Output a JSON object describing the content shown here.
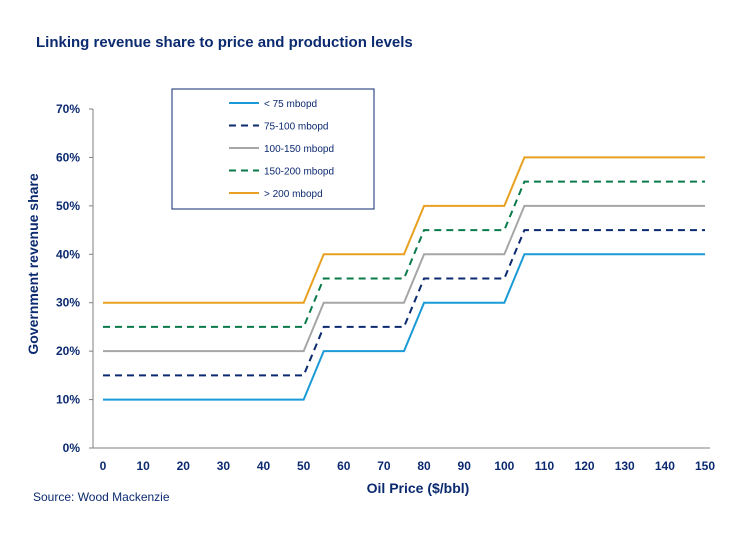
{
  "header": {
    "title": "Linking revenue share to price and production levels"
  },
  "footer": {
    "source": "Source: Wood Mackenzie"
  },
  "chart_data": {
    "type": "line",
    "title": "Linking revenue share to price and production levels",
    "xlabel": "Oil Price ($/bbl)",
    "ylabel": "Government revenue share",
    "xlim": [
      0,
      150
    ],
    "ylim": [
      0,
      70
    ],
    "x_ticks": [
      "0",
      "10",
      "20",
      "30",
      "40",
      "50",
      "60",
      "70",
      "80",
      "90",
      "100",
      "110",
      "120",
      "130",
      "140",
      "150"
    ],
    "y_ticks": [
      "0%",
      "10%",
      "20%",
      "30%",
      "40%",
      "50%",
      "60%",
      "70%"
    ],
    "grid": false,
    "legend_position": "top-left (boxed)",
    "x": [
      0,
      50,
      55,
      75,
      80,
      100,
      105,
      150
    ],
    "series": [
      {
        "name": "< 75 mbopd",
        "color": "#1a9ad6",
        "style": "solid",
        "values": [
          10,
          10,
          20,
          20,
          30,
          30,
          40,
          40
        ]
      },
      {
        "name": "75-100 mbopd",
        "color": "#0b2a6f",
        "style": "dashed",
        "values": [
          15,
          15,
          25,
          25,
          35,
          35,
          45,
          45
        ]
      },
      {
        "name": "100-150 mbopd",
        "color": "#a6a6a6",
        "style": "solid",
        "values": [
          20,
          20,
          30,
          30,
          40,
          40,
          50,
          50
        ]
      },
      {
        "name": "150-200 mbopd",
        "color": "#0a7a4a",
        "style": "dashed",
        "values": [
          25,
          25,
          35,
          35,
          45,
          45,
          55,
          55
        ]
      },
      {
        "name": "> 200 mbopd",
        "color": "#e8a020",
        "style": "solid",
        "values": [
          30,
          30,
          40,
          40,
          50,
          50,
          60,
          60
        ]
      }
    ]
  }
}
